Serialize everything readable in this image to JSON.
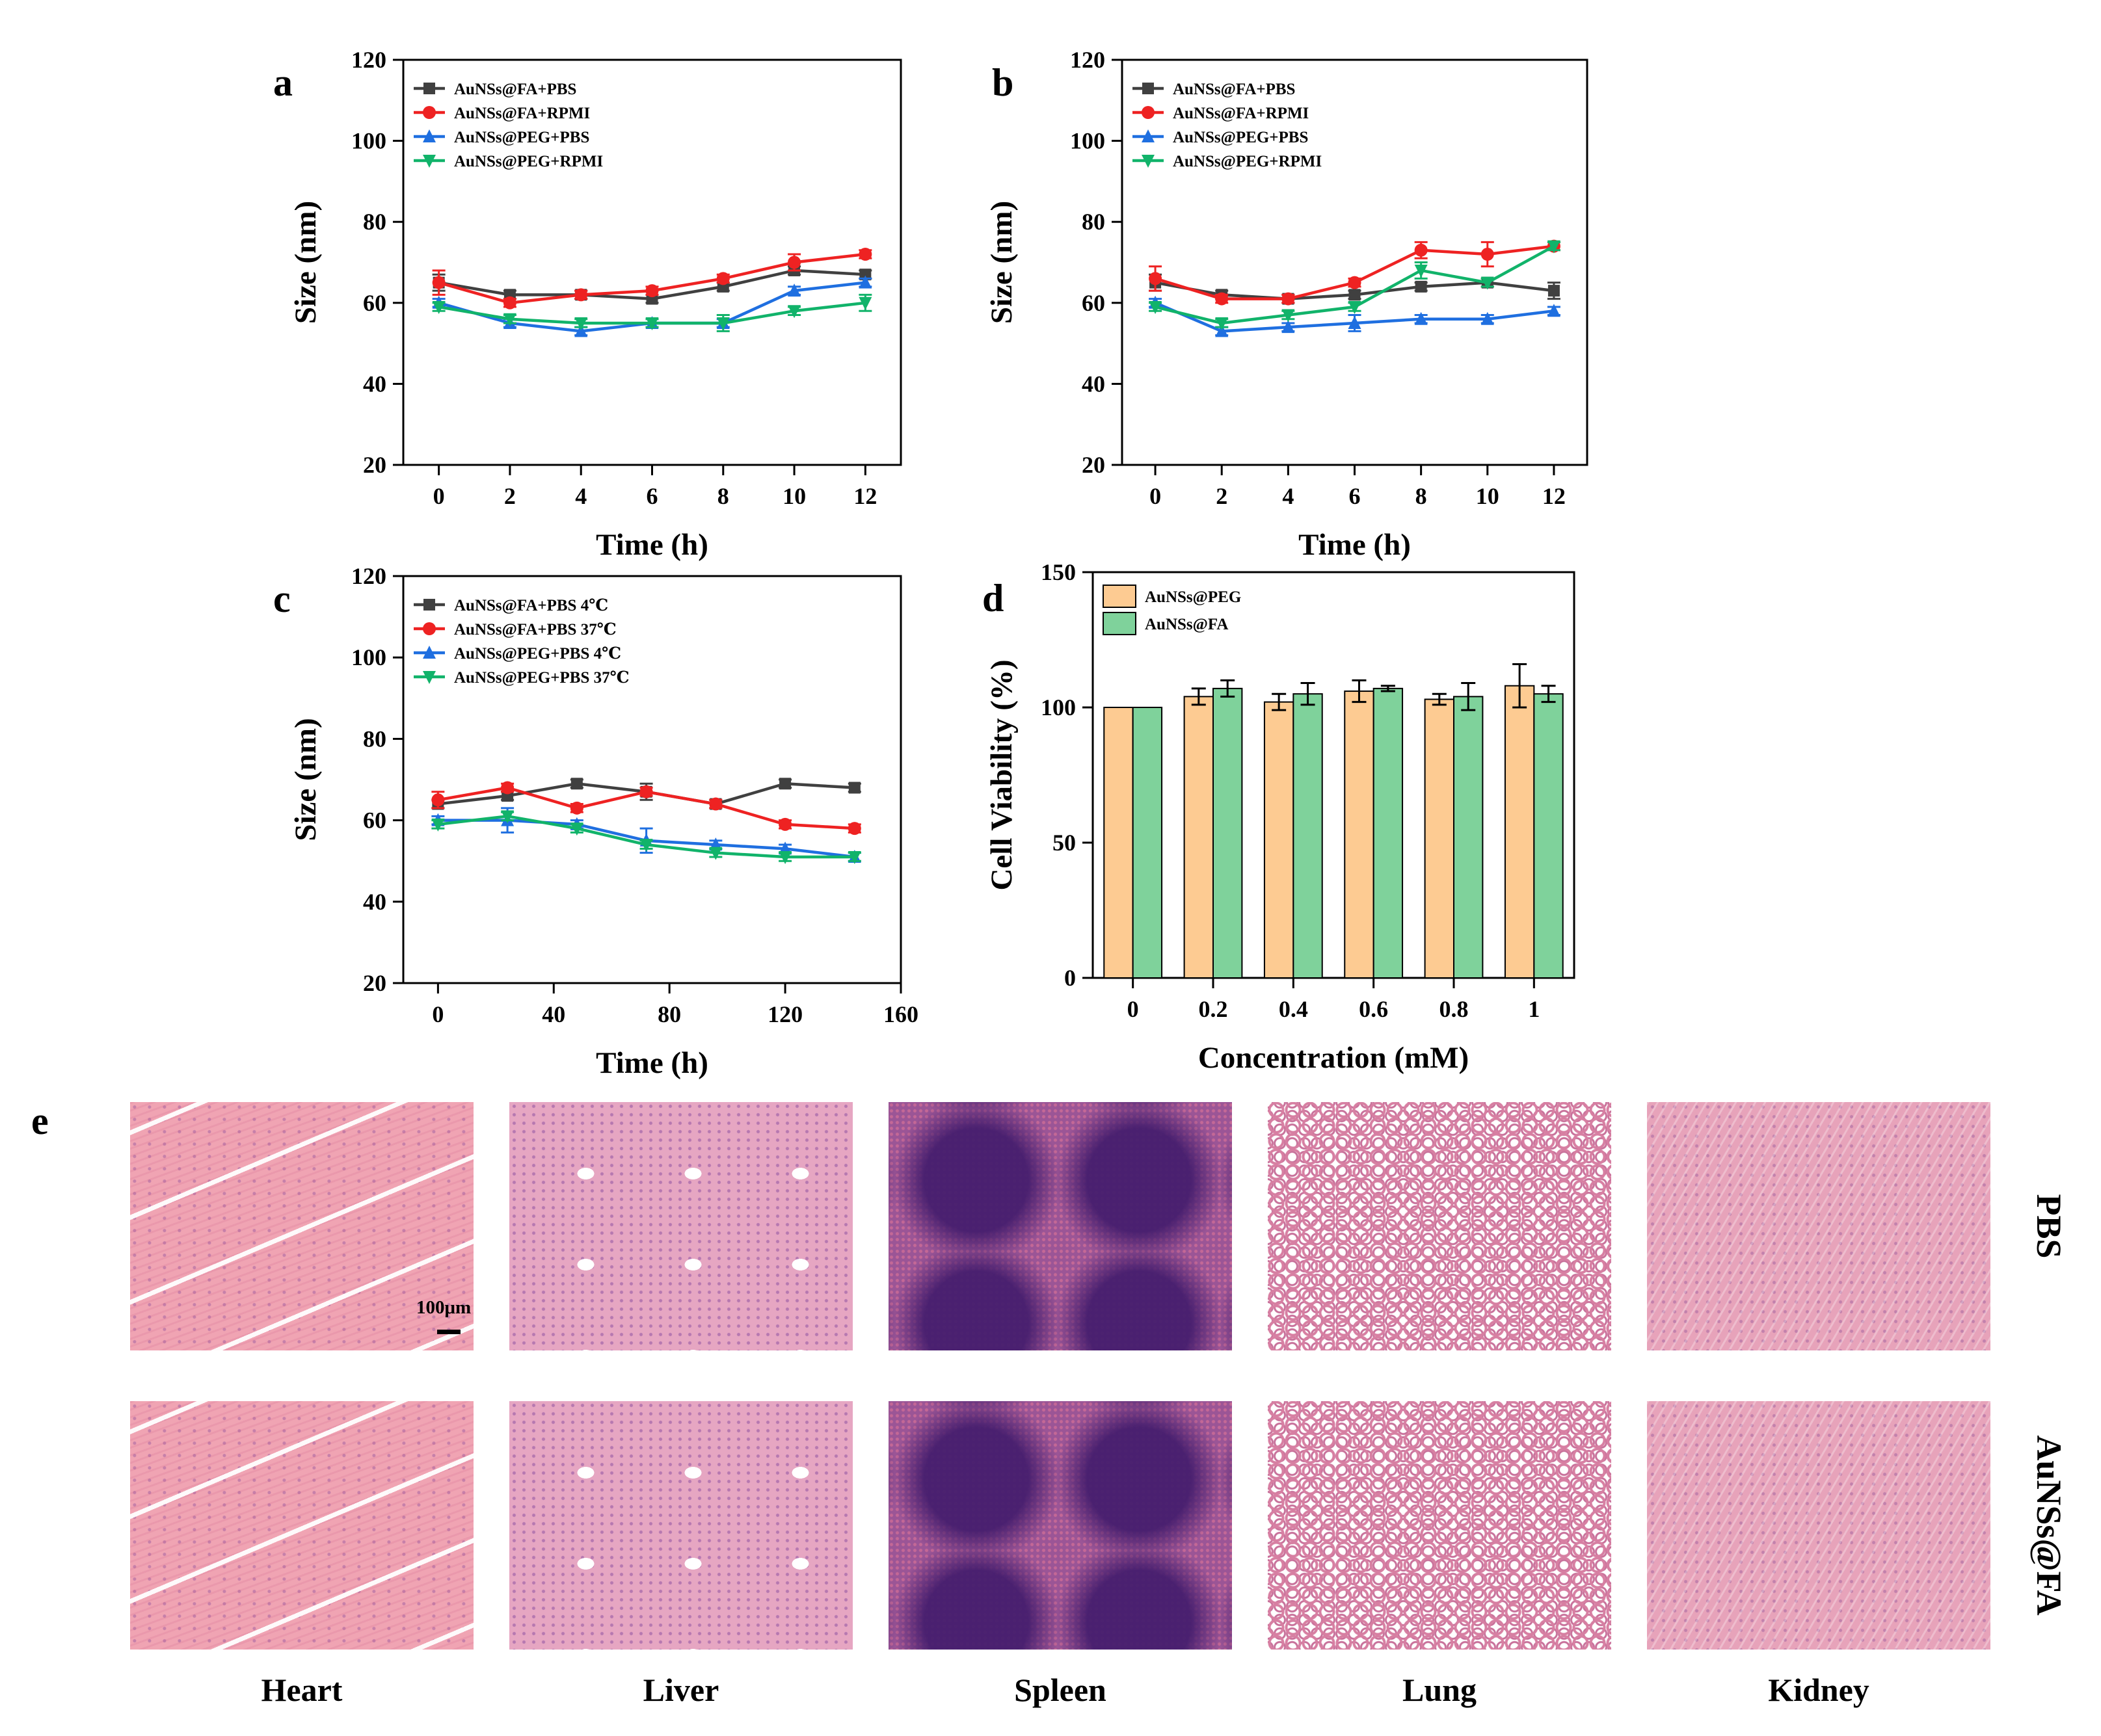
{
  "chart_data": [
    {
      "id": "a",
      "panel_label": "a",
      "type": "line",
      "xlabel": "Time (h)",
      "ylabel": "Size (nm)",
      "xlim": [
        -1,
        13
      ],
      "ylim": [
        20,
        120
      ],
      "xticks": [
        0,
        2,
        4,
        6,
        8,
        10,
        12
      ],
      "yticks": [
        20,
        40,
        60,
        80,
        100,
        120
      ],
      "x": [
        0,
        2,
        4,
        6,
        8,
        10,
        12
      ],
      "legend_position": "top-left",
      "series": [
        {
          "name": "AuNSs@FA+PBS",
          "color": "#404040",
          "marker": "square",
          "values": [
            65,
            62,
            62,
            61,
            64,
            68,
            67
          ],
          "errors": [
            2,
            1,
            1,
            1,
            1,
            1,
            1
          ]
        },
        {
          "name": "AuNSs@FA+RPMI",
          "color": "#ee2222",
          "marker": "circle",
          "values": [
            65,
            60,
            62,
            63,
            66,
            70,
            72
          ],
          "errors": [
            3,
            1,
            1,
            1,
            1,
            2,
            1
          ]
        },
        {
          "name": "AuNSs@PEG+PBS",
          "color": "#1f6fe0",
          "marker": "triangle-up",
          "values": [
            60,
            55,
            53,
            55,
            55,
            63,
            65
          ],
          "errors": [
            1,
            1,
            1,
            1,
            1,
            1,
            1
          ]
        },
        {
          "name": "AuNSs@PEG+RPMI",
          "color": "#11b36a",
          "marker": "triangle-down",
          "values": [
            59,
            56,
            55,
            55,
            55,
            58,
            60
          ],
          "errors": [
            1,
            1,
            1,
            1,
            2,
            1,
            2
          ]
        }
      ]
    },
    {
      "id": "b",
      "panel_label": "b",
      "type": "line",
      "xlabel": "Time (h)",
      "ylabel": "Size (nm)",
      "xlim": [
        -1,
        13
      ],
      "ylim": [
        20,
        120
      ],
      "xticks": [
        0,
        2,
        4,
        6,
        8,
        10,
        12
      ],
      "yticks": [
        20,
        40,
        60,
        80,
        100,
        120
      ],
      "x": [
        0,
        2,
        4,
        6,
        8,
        10,
        12
      ],
      "legend_position": "top-left",
      "series": [
        {
          "name": "AuNSs@FA+PBS",
          "color": "#404040",
          "marker": "square",
          "values": [
            65,
            62,
            61,
            62,
            64,
            65,
            63
          ],
          "errors": [
            2,
            1,
            1,
            1,
            1,
            1,
            2
          ]
        },
        {
          "name": "AuNSs@FA+RPMI",
          "color": "#ee2222",
          "marker": "circle",
          "values": [
            66,
            61,
            61,
            65,
            73,
            72,
            74
          ],
          "errors": [
            3,
            1,
            1,
            1,
            2,
            3,
            1
          ]
        },
        {
          "name": "AuNSs@PEG+PBS",
          "color": "#1f6fe0",
          "marker": "triangle-up",
          "values": [
            60,
            53,
            54,
            55,
            56,
            56,
            58
          ],
          "errors": [
            1,
            1,
            1,
            2,
            1,
            1,
            1
          ]
        },
        {
          "name": "AuNSs@PEG+RPMI",
          "color": "#11b36a",
          "marker": "triangle-down",
          "values": [
            59,
            55,
            57,
            59,
            68,
            65,
            74
          ],
          "errors": [
            1,
            1,
            1,
            1,
            2,
            1,
            1
          ]
        }
      ]
    },
    {
      "id": "c",
      "panel_label": "c",
      "type": "line",
      "xlabel": "Time (h)",
      "ylabel": "Size (nm)",
      "xlim": [
        -12,
        160
      ],
      "ylim": [
        20,
        120
      ],
      "xticks": [
        0,
        40,
        80,
        120,
        160
      ],
      "yticks": [
        20,
        40,
        60,
        80,
        100,
        120
      ],
      "x": [
        0,
        24,
        48,
        72,
        96,
        120,
        144
      ],
      "legend_position": "top-left",
      "series": [
        {
          "name": "AuNSs@FA+PBS 4℃",
          "color": "#404040",
          "marker": "square",
          "values": [
            64,
            66,
            69,
            67,
            64,
            69,
            68
          ],
          "errors": [
            1,
            1,
            1,
            2,
            1,
            1,
            1
          ]
        },
        {
          "name": "AuNSs@FA+PBS 37℃",
          "color": "#ee2222",
          "marker": "circle",
          "values": [
            65,
            68,
            63,
            67,
            64,
            59,
            58
          ],
          "errors": [
            2,
            1,
            1,
            1,
            1,
            1,
            1
          ]
        },
        {
          "name": "AuNSs@PEG+PBS 4℃",
          "color": "#1f6fe0",
          "marker": "triangle-up",
          "values": [
            60,
            60,
            59,
            55,
            54,
            53,
            51
          ],
          "errors": [
            1,
            3,
            1,
            3,
            1,
            1,
            1
          ]
        },
        {
          "name": "AuNSs@PEG+PBS 37℃",
          "color": "#11b36a",
          "marker": "triangle-down",
          "values": [
            59,
            61,
            58,
            54,
            52,
            51,
            51
          ],
          "errors": [
            1,
            1,
            1,
            1,
            1,
            1,
            1
          ]
        }
      ]
    },
    {
      "id": "d",
      "panel_label": "d",
      "type": "bar",
      "xlabel": "Concentration (mM)",
      "ylabel": "Cell Viability (%)",
      "categories": [
        "0",
        "0.2",
        "0.4",
        "0.6",
        "0.8",
        "1"
      ],
      "ylim": [
        0,
        150
      ],
      "yticks": [
        0,
        50,
        100,
        150
      ],
      "legend_position": "top-left",
      "series": [
        {
          "name": "AuNSs@PEG",
          "color": "#fdcb92",
          "values": [
            100,
            104,
            102,
            106,
            103,
            108
          ],
          "errors": [
            0,
            3,
            3,
            4,
            2,
            8
          ]
        },
        {
          "name": "AuNSs@FA",
          "color": "#7fd29b",
          "values": [
            100,
            107,
            105,
            107,
            104,
            105
          ],
          "errors": [
            0,
            3,
            4,
            1,
            5,
            3
          ]
        }
      ]
    }
  ],
  "histology": {
    "panel_label": "e",
    "organs": [
      "Heart",
      "Liver",
      "Spleen",
      "Lung",
      "Kidney"
    ],
    "rows": [
      "PBS",
      "AuNSs@FA"
    ],
    "scale_bar": "100μm"
  }
}
